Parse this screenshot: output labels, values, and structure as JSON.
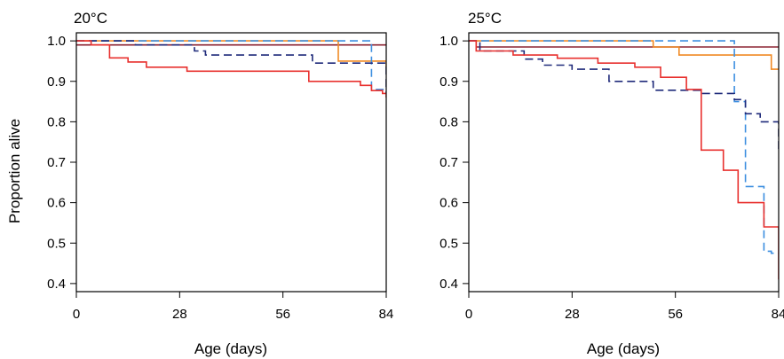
{
  "figure": {
    "ylabel": "Proportion alive",
    "xlabel": "Age (days)"
  },
  "chart_data": [
    {
      "type": "line",
      "title": "20°C",
      "xlabel": "Age (days)",
      "ylabel": "Proportion alive",
      "xlim": [
        0,
        84
      ],
      "ylim": [
        0.38,
        1.02
      ],
      "xticks": [
        0,
        28,
        56,
        84
      ],
      "yticks": [
        0.4,
        0.5,
        0.6,
        0.7,
        0.8,
        0.9,
        1.0
      ],
      "yticklabels": [
        "0.4",
        "0.5",
        "0.6",
        "0.7",
        "0.8",
        "0.9",
        "1.0"
      ],
      "grid": false,
      "series": [
        {
          "color": "#8B2332",
          "dash": "solid",
          "x": [
            0,
            84
          ],
          "y": [
            0.99,
            0.99
          ]
        },
        {
          "color": "#F08A24",
          "dash": "solid",
          "x": [
            0,
            71,
            71,
            84,
            84
          ],
          "y": [
            1.0,
            1.0,
            0.95,
            0.95,
            0.935
          ]
        },
        {
          "color": "#3D8FE0",
          "dash": "dashed",
          "x": [
            0,
            80,
            80,
            84
          ],
          "y": [
            1.0,
            1.0,
            0.88,
            0.88
          ]
        },
        {
          "color": "#1F2A7A",
          "dash": "dashed",
          "x": [
            0,
            16,
            16,
            32,
            32,
            35,
            35,
            64,
            64,
            84,
            84
          ],
          "y": [
            1.0,
            1.0,
            0.99,
            0.99,
            0.975,
            0.975,
            0.965,
            0.965,
            0.945,
            0.945,
            0.87
          ]
        },
        {
          "color": "#E8302E",
          "dash": "solid",
          "x": [
            0,
            4,
            4,
            9,
            9,
            14,
            14,
            19,
            19,
            30,
            30,
            63,
            63,
            77,
            77,
            80,
            80,
            83,
            83,
            84,
            84
          ],
          "y": [
            1.0,
            1.0,
            0.99,
            0.99,
            0.958,
            0.958,
            0.948,
            0.948,
            0.935,
            0.935,
            0.925,
            0.925,
            0.9,
            0.9,
            0.89,
            0.89,
            0.877,
            0.877,
            0.87,
            0.87,
            0.86
          ]
        }
      ]
    },
    {
      "type": "line",
      "title": "25°C",
      "xlabel": "Age (days)",
      "ylabel": "",
      "xlim": [
        0,
        84
      ],
      "ylim": [
        0.38,
        1.02
      ],
      "xticks": [
        0,
        28,
        56,
        84
      ],
      "yticks": [
        0.4,
        0.5,
        0.6,
        0.7,
        0.8,
        0.9,
        1.0
      ],
      "yticklabels": [
        "0.4",
        "0.5",
        "0.6",
        "0.7",
        "0.8",
        "0.9",
        "1.0"
      ],
      "grid": false,
      "series": [
        {
          "color": "#8B2332",
          "dash": "solid",
          "x": [
            0,
            2,
            2,
            84
          ],
          "y": [
            1.0,
            1.0,
            0.985,
            0.985
          ]
        },
        {
          "color": "#F08A24",
          "dash": "solid",
          "x": [
            0,
            50,
            50,
            57,
            57,
            82,
            82,
            84
          ],
          "y": [
            1.0,
            1.0,
            0.985,
            0.985,
            0.965,
            0.965,
            0.93,
            0.93
          ]
        },
        {
          "color": "#3D8FE0",
          "dash": "dashed",
          "x": [
            0,
            72,
            72,
            75,
            75,
            80,
            80,
            82,
            82,
            84
          ],
          "y": [
            1.0,
            1.0,
            0.85,
            0.85,
            0.64,
            0.64,
            0.48,
            0.48,
            0.475,
            0.475
          ]
        },
        {
          "color": "#1F2A7A",
          "dash": "dashed",
          "x": [
            0,
            3,
            3,
            15,
            15,
            20,
            20,
            28,
            28,
            38,
            38,
            50,
            50,
            63,
            63,
            72,
            72,
            75,
            75,
            79,
            79,
            82,
            82,
            84,
            84
          ],
          "y": [
            1.0,
            1.0,
            0.975,
            0.975,
            0.955,
            0.955,
            0.94,
            0.94,
            0.93,
            0.93,
            0.9,
            0.9,
            0.878,
            0.878,
            0.87,
            0.87,
            0.855,
            0.855,
            0.82,
            0.82,
            0.8,
            0.8,
            0.8,
            0.8,
            0.73
          ]
        },
        {
          "color": "#E8302E",
          "dash": "solid",
          "x": [
            0,
            2,
            2,
            12,
            12,
            24,
            24,
            35,
            35,
            45,
            45,
            52,
            52,
            59,
            59,
            63,
            63,
            66,
            66,
            69,
            69,
            73,
            73,
            80,
            80,
            84,
            84
          ],
          "y": [
            1.0,
            1.0,
            0.975,
            0.975,
            0.965,
            0.965,
            0.957,
            0.957,
            0.945,
            0.945,
            0.935,
            0.935,
            0.91,
            0.91,
            0.88,
            0.88,
            0.73,
            0.73,
            0.73,
            0.73,
            0.68,
            0.68,
            0.6,
            0.6,
            0.54,
            0.54,
            0.41
          ]
        }
      ]
    }
  ]
}
